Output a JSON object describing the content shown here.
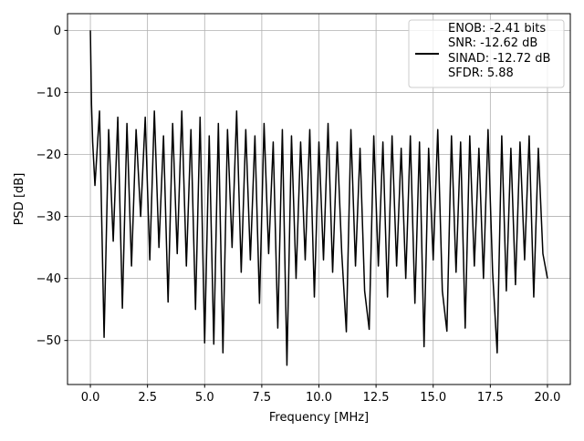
{
  "chart_data": {
    "type": "line",
    "xlabel": "Frequency [MHz]",
    "ylabel": "PSD [dB]",
    "xlim": [
      -1,
      21
    ],
    "ylim": [
      -57.1,
      2.7
    ],
    "xticks": [
      {
        "value": 0,
        "label": "0.0"
      },
      2.5,
      {
        "value": 5,
        "label": "5.0"
      },
      7.5,
      {
        "value": 10,
        "label": "10.0"
      },
      12.5,
      {
        "value": 15,
        "label": "15.0"
      },
      17.5,
      {
        "value": 20,
        "label": "20.0"
      }
    ],
    "yticks": [
      0,
      {
        "value": -10,
        "label": "−10"
      },
      {
        "value": -20,
        "label": "−20"
      },
      {
        "value": -30,
        "label": "−30"
      },
      {
        "value": -40,
        "label": "−40"
      },
      {
        "value": -50,
        "label": "−50"
      }
    ],
    "grid": true,
    "legend": "upper right",
    "x": [
      0,
      0.05,
      0.1,
      0.2,
      0.4,
      0.6,
      0.8,
      1.0,
      1.2,
      1.4,
      1.6,
      1.8,
      2.0,
      2.2,
      2.4,
      2.6,
      2.8,
      3.0,
      3.2,
      3.4,
      3.6,
      3.8,
      4.0,
      4.2,
      4.4,
      4.6,
      4.8,
      5.0,
      5.2,
      5.4,
      5.6,
      5.8,
      6.0,
      6.2,
      6.4,
      6.6,
      6.8,
      7.0,
      7.2,
      7.4,
      7.6,
      7.8,
      8.0,
      8.2,
      8.4,
      8.6,
      8.8,
      9.0,
      9.2,
      9.4,
      9.6,
      9.8,
      10.0,
      10.2,
      10.4,
      10.6,
      10.8,
      11.0,
      11.2,
      11.4,
      11.6,
      11.8,
      12.0,
      12.2,
      12.4,
      12.6,
      12.8,
      13.0,
      13.2,
      13.4,
      13.6,
      13.8,
      14.0,
      14.2,
      14.4,
      14.6,
      14.8,
      15.0,
      15.2,
      15.4,
      15.6,
      15.8,
      16.0,
      16.2,
      16.4,
      16.6,
      16.8,
      17.0,
      17.2,
      17.4,
      17.6,
      17.8,
      18.0,
      18.2,
      18.4,
      18.6,
      18.8,
      19.0,
      19.2,
      19.4,
      19.6,
      19.8,
      20.0
    ],
    "series": [
      {
        "name": "ENOB: -2.41 bits\nSNR: -12.62 dB\nSINAD: -12.72 dB\nSFDR: 5.88",
        "color": "#000000",
        "values": [
          0,
          -12,
          -18,
          -25,
          -13,
          -49.5,
          -16,
          -34,
          -14,
          -44.8,
          -15,
          -38,
          -16,
          -30,
          -14,
          -37,
          -13,
          -35,
          -17,
          -43.8,
          -15,
          -36,
          -13,
          -38,
          -16,
          -45,
          -14,
          -50.4,
          -17,
          -50.6,
          -15,
          -52,
          -16,
          -35,
          -13,
          -39,
          -16,
          -37,
          -17,
          -44,
          -15,
          -36,
          -18,
          -48,
          -16,
          -54,
          -17,
          -40,
          -18,
          -37,
          -16,
          -43,
          -18,
          -37,
          -15,
          -39,
          -18,
          -36,
          -48.6,
          -16,
          -38,
          -19,
          -42,
          -48.2,
          -17,
          -38,
          -18,
          -43,
          -17,
          -38,
          -19,
          -40,
          -17,
          -44,
          -18,
          -51,
          -19,
          -37,
          -16,
          -42,
          -48.5,
          -17,
          -39,
          -18,
          -48,
          -17,
          -38,
          -19,
          -40,
          -16,
          -39,
          -52,
          -17,
          -42,
          -19,
          -41,
          -18,
          -37,
          -17,
          -43,
          -19,
          -36,
          -40
        ]
      }
    ]
  }
}
